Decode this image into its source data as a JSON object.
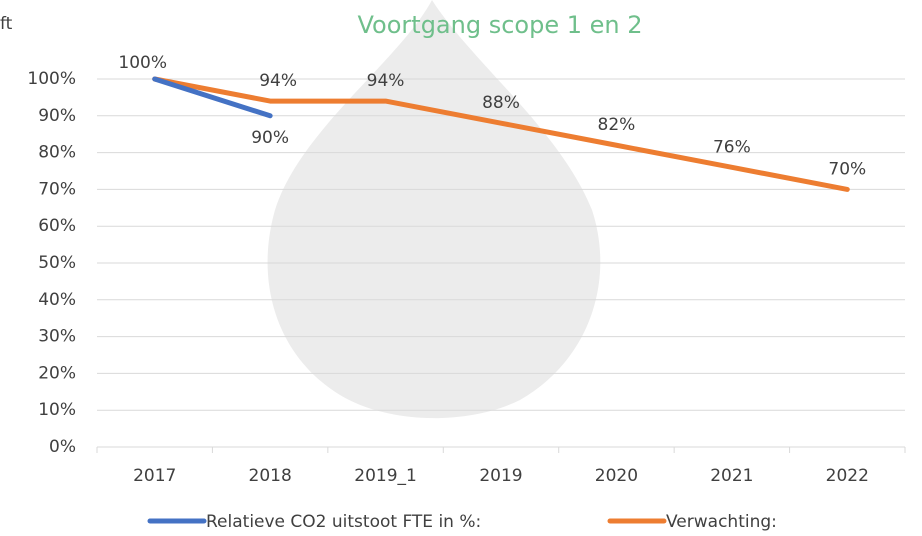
{
  "chart_data": {
    "type": "line",
    "title": "Voortgang scope 1 en 2",
    "annotations": [
      "ft"
    ],
    "categories": [
      "2017",
      "2018",
      "2019_1",
      "2019",
      "2020",
      "2021",
      "2022"
    ],
    "series": [
      {
        "name": "Relatieve CO2 uitstoot FTE in %:",
        "color": "#4472c4",
        "values": [
          100,
          90,
          null,
          null,
          null,
          null,
          null
        ],
        "value_labels": [
          "100%",
          "90%",
          null,
          null,
          null,
          null,
          null
        ]
      },
      {
        "name": "Verwachting:",
        "color": "#ed7d31",
        "values": [
          100,
          94,
          94,
          88,
          82,
          76,
          70
        ],
        "value_labels": [
          null,
          "94%",
          "94%",
          "88%",
          "82%",
          "76%",
          "70%"
        ]
      }
    ],
    "ylim": [
      0,
      100
    ],
    "yticks": [
      {
        "value": 0,
        "label": "0%"
      },
      {
        "value": 10,
        "label": "10%"
      },
      {
        "value": 20,
        "label": "20%"
      },
      {
        "value": 30,
        "label": "30%"
      },
      {
        "value": 40,
        "label": "40%"
      },
      {
        "value": 50,
        "label": "50%"
      },
      {
        "value": 60,
        "label": "60%"
      },
      {
        "value": 70,
        "label": "70%"
      },
      {
        "value": 80,
        "label": "80%"
      },
      {
        "value": 90,
        "label": "90%"
      },
      {
        "value": 100,
        "label": "100%"
      }
    ],
    "grid": true,
    "legend": "bottom"
  }
}
